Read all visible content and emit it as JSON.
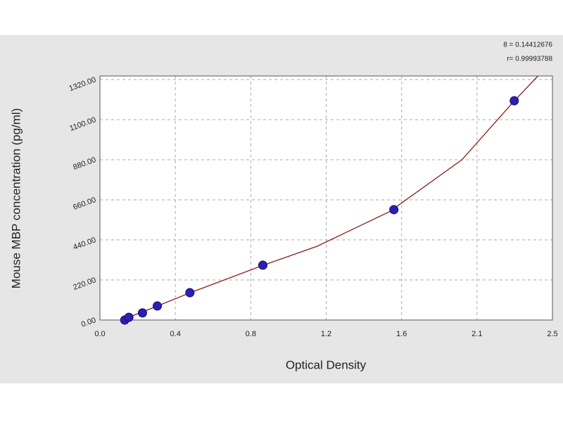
{
  "chart_data": {
    "type": "scatter",
    "xlabel": "Optical Density",
    "ylabel": "Mouse MBP concentration (pg/ml)",
    "annotations": [
      "8 = 0.14412676",
      "r= 0.99993788"
    ],
    "xlim": [
      0,
      2.5
    ],
    "ylim": [
      0,
      1340
    ],
    "xticks": [
      {
        "value": 0,
        "label": "0.0"
      },
      {
        "value": 0.4167,
        "label": "0.4"
      },
      {
        "value": 0.8333,
        "label": "0.8"
      },
      {
        "value": 1.25,
        "label": "1.2"
      },
      {
        "value": 1.6667,
        "label": "1.6"
      },
      {
        "value": 2.0833,
        "label": "2.1"
      },
      {
        "value": 2.5,
        "label": "2.5"
      }
    ],
    "yticks": [
      {
        "value": 0,
        "label": "0.00"
      },
      {
        "value": 220,
        "label": "220.00"
      },
      {
        "value": 440,
        "label": "440.00"
      },
      {
        "value": 660,
        "label": "660.00"
      },
      {
        "value": 880,
        "label": "880.00"
      },
      {
        "value": 1100,
        "label": "1100.00"
      },
      {
        "value": 1320,
        "label": "1320.00"
      }
    ],
    "grid": true,
    "series": [
      {
        "type": "scatter",
        "color": "#2b1fb4",
        "x": [
          0.137,
          0.16,
          0.235,
          0.317,
          0.497,
          0.9,
          1.624,
          2.289
        ],
        "values": [
          0,
          15,
          39,
          77,
          150,
          301,
          606,
          1204
        ]
      },
      {
        "type": "line",
        "color": "#8b1c1c",
        "x": [
          0.12,
          0.3,
          0.5,
          0.9,
          1.2,
          1.6,
          2.0,
          2.29,
          2.42
        ],
        "values": [
          0,
          70,
          150,
          300,
          405,
          595,
          880,
          1204,
          1340
        ]
      }
    ]
  }
}
